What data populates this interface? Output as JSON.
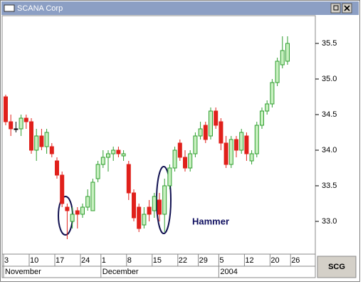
{
  "window": {
    "title": "SCANA Corp",
    "symbol_button": "SCG"
  },
  "chart_data": {
    "type": "candlestick",
    "up_color": "#2e9e2e",
    "up_fill": "#c8f0c0",
    "down_color": "#e0201b",
    "flat_color": "#000000",
    "categories": [
      "3",
      null,
      null,
      null,
      null,
      "10",
      null,
      null,
      null,
      null,
      "17",
      null,
      null,
      null,
      null,
      "24",
      null,
      null,
      null,
      "1",
      null,
      null,
      null,
      null,
      "8",
      null,
      null,
      null,
      null,
      "15",
      null,
      null,
      null,
      null,
      "22",
      null,
      null,
      null,
      "29",
      null,
      null,
      null,
      "5",
      null,
      null,
      null,
      null,
      "12",
      null,
      null,
      null,
      null,
      "20",
      null,
      null,
      null,
      "26"
    ],
    "month_ticks": [
      {
        "value": 0,
        "label": "November"
      },
      {
        "value": 19,
        "label": "December"
      },
      {
        "value": 42,
        "label": "2004"
      }
    ],
    "open": [
      34.75,
      34.4,
      34.3,
      34.3,
      34.45,
      34.4,
      34.0,
      34.2,
      34.05,
      34.05,
      33.85,
      33.65,
      33.2,
      33.0,
      33.15,
      33.1,
      33.2,
      33.15,
      33.6,
      33.8,
      33.9,
      33.95,
      34.0,
      33.92,
      33.8,
      33.4,
      33.2,
      32.95,
      33.2,
      33.15,
      33.3,
      33.1,
      33.5,
      33.75,
      34.1,
      33.9,
      33.75,
      33.95,
      34.2,
      34.35,
      34.2,
      34.55,
      34.4,
      34.1,
      33.8,
      34.15,
      34.0,
      34.2,
      33.85,
      33.95,
      34.35,
      34.55,
      34.65,
      34.95,
      35.2,
      35.25,
      null
    ],
    "high": [
      34.78,
      34.5,
      34.4,
      34.5,
      34.5,
      34.45,
      34.3,
      34.3,
      34.3,
      34.1,
      33.9,
      33.7,
      33.25,
      33.2,
      33.2,
      33.25,
      33.45,
      33.6,
      33.85,
      34.0,
      34.0,
      34.05,
      34.05,
      34.0,
      33.85,
      33.45,
      33.25,
      33.2,
      33.3,
      33.4,
      33.4,
      33.6,
      33.8,
      34.05,
      34.15,
      34.0,
      34.0,
      34.25,
      34.4,
      34.4,
      34.6,
      34.6,
      34.45,
      34.2,
      34.2,
      34.2,
      34.3,
      34.25,
      34.0,
      34.4,
      34.6,
      34.7,
      35.0,
      35.3,
      35.6,
      35.6,
      null
    ],
    "low": [
      34.35,
      34.2,
      34.25,
      34.2,
      34.3,
      33.95,
      33.85,
      34.0,
      33.95,
      33.9,
      33.6,
      33.2,
      32.75,
      32.9,
      32.9,
      33.05,
      33.15,
      33.15,
      33.55,
      33.75,
      33.7,
      33.85,
      33.9,
      33.85,
      33.3,
      33.0,
      32.85,
      32.9,
      33.0,
      33.05,
      33.0,
      32.85,
      33.45,
      33.7,
      33.85,
      33.7,
      33.7,
      33.9,
      34.15,
      34.1,
      34.15,
      34.3,
      34.0,
      33.75,
      33.75,
      33.9,
      33.95,
      33.85,
      33.8,
      33.9,
      34.3,
      34.5,
      34.6,
      34.9,
      35.15,
      35.2,
      null
    ],
    "close": [
      34.4,
      34.3,
      34.3,
      34.45,
      34.4,
      34.0,
      34.2,
      34.05,
      34.25,
      33.95,
      33.65,
      33.25,
      33.15,
      33.1,
      33.1,
      33.2,
      33.35,
      33.55,
      33.8,
      33.9,
      33.95,
      34.0,
      33.95,
      33.95,
      33.4,
      33.05,
      32.9,
      33.1,
      33.1,
      33.35,
      33.1,
      33.5,
      33.75,
      34.0,
      33.9,
      33.75,
      33.95,
      34.2,
      34.3,
      34.15,
      34.55,
      34.35,
      34.1,
      33.8,
      34.15,
      34.0,
      34.25,
      33.95,
      33.95,
      34.35,
      34.55,
      34.65,
      34.95,
      35.25,
      35.4,
      35.5,
      null
    ],
    "ylim": [
      32.54,
      35.89
    ],
    "yticks": [
      {
        "value": 33.0,
        "label": "33.0"
      },
      {
        "value": 33.5,
        "label": "33.5"
      },
      {
        "value": 34.0,
        "label": "34.0"
      },
      {
        "value": 34.5,
        "label": "34.5"
      },
      {
        "value": 35.0,
        "label": "35.0"
      },
      {
        "value": 35.5,
        "label": "35.5"
      }
    ],
    "annotations": [
      {
        "text": "Hammer"
      }
    ]
  }
}
